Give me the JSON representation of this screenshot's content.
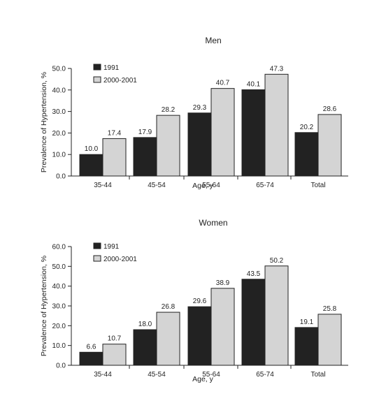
{
  "colors": {
    "1991": "#222222",
    "2000-2001": "#d4d4d4",
    "axis": "#222222"
  },
  "chart_data": [
    {
      "type": "bar",
      "title": "Men",
      "xlabel": "Age, y",
      "ylabel": "Prevalence of Hypertension, %",
      "ylim": [
        0,
        50
      ],
      "yticks": [
        "0.0",
        "10.0",
        "20.0",
        "30.0",
        "40.0",
        "50.0"
      ],
      "grid": false,
      "legend": "top-left",
      "categories": [
        "35-44",
        "45-54",
        "55-64",
        "65-74",
        "Total"
      ],
      "series": [
        {
          "name": "1991",
          "values": [
            10.0,
            17.9,
            29.3,
            40.1,
            20.2
          ],
          "labels": [
            "10.0",
            "17.9",
            "29.3",
            "40.1",
            "20.2"
          ]
        },
        {
          "name": "2000-2001",
          "values": [
            17.4,
            28.2,
            40.7,
            47.3,
            28.6
          ],
          "labels": [
            "17.4",
            "28.2",
            "40.7",
            "47.3",
            "28.6"
          ]
        }
      ]
    },
    {
      "type": "bar",
      "title": "Women",
      "xlabel": "Age, y",
      "ylabel": "Prevalence of Hypertension, %",
      "ylim": [
        0,
        60
      ],
      "yticks": [
        "0.0",
        "10.0",
        "20.0",
        "30.0",
        "40.0",
        "50.0",
        "60.0"
      ],
      "grid": false,
      "legend": "top-left",
      "categories": [
        "35-44",
        "45-54",
        "55-64",
        "65-74",
        "Total"
      ],
      "series": [
        {
          "name": "1991",
          "values": [
            6.6,
            18.0,
            29.6,
            43.5,
            19.1
          ],
          "labels": [
            "6.6",
            "18.0",
            "29.6",
            "43.5",
            "19.1"
          ]
        },
        {
          "name": "2000-2001",
          "values": [
            10.7,
            26.8,
            38.9,
            50.2,
            25.8
          ],
          "labels": [
            "10.7",
            "26.8",
            "38.9",
            "50.2",
            "25.8"
          ]
        }
      ]
    }
  ]
}
